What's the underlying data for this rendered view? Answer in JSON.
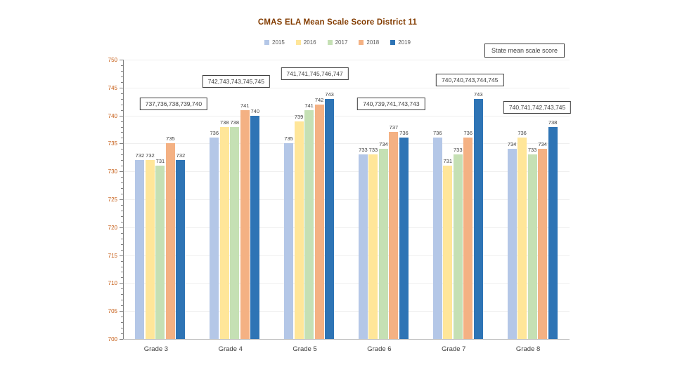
{
  "title": "CMAS ELA Mean Scale Score District 11",
  "state_mean_box": "State mean scale score",
  "chart_data": {
    "type": "bar",
    "title": "CMAS ELA Mean Scale Score District 11",
    "categories": [
      "Grade 3",
      "Grade 4",
      "Grade 5",
      "Grade 6",
      "Grade 7",
      "Grade 8"
    ],
    "series": [
      {
        "name": "2015",
        "color": "#B4C7E7",
        "values": [
          732,
          736,
          735,
          733,
          736,
          734
        ]
      },
      {
        "name": "2016",
        "color": "#FFE699",
        "values": [
          732,
          738,
          739,
          733,
          731,
          736
        ]
      },
      {
        "name": "2017",
        "color": "#C5E0B4",
        "values": [
          731,
          738,
          741,
          734,
          733,
          733
        ]
      },
      {
        "name": "2018",
        "color": "#F4B183",
        "values": [
          735,
          741,
          742,
          737,
          736,
          734
        ]
      },
      {
        "name": "2019",
        "color": "#2E74B5",
        "values": [
          732,
          740,
          743,
          736,
          743,
          738
        ]
      }
    ],
    "state_mean_annotations": [
      "737,736,738,739,740",
      "742,743,743,745,745",
      "741,741,745,746,747",
      "740,739,741,743,743",
      "740,740,743,744,745",
      "740,741,742,743,745"
    ],
    "ylim": [
      700,
      750
    ],
    "ytick_step": 5,
    "yticks": [
      700,
      705,
      710,
      715,
      720,
      725,
      730,
      735,
      740,
      745,
      750
    ],
    "grid": true,
    "legend_position": "top",
    "xlabel": "",
    "ylabel": "",
    "colors": {
      "title": "#833C00",
      "y_axis_labels": "#C55A11",
      "data_labels": "#404040"
    }
  }
}
